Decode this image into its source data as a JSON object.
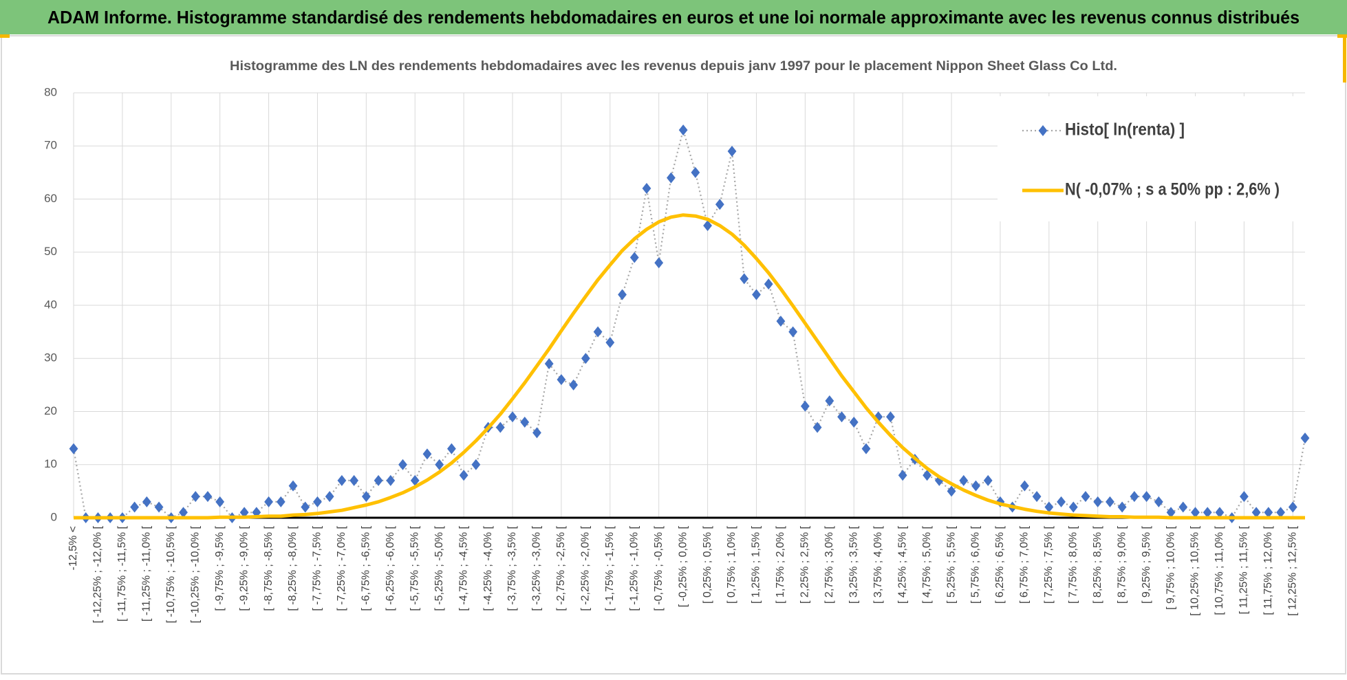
{
  "page_title": "ADAM Informe. Histogramme standardisé des rendements hebdomadaires en euros et une loi normale approximante avec les revenus connus distribués",
  "chart_data": {
    "type": "line",
    "title": "Histogramme  des LN des rendements  hebdomadaires avec les revenus depuis janv 1997 pour le placement Nippon Sheet Glass  Co Ltd.",
    "categories": [
      "-12,5% <",
      null,
      "[ -12,25% ; -12,0% [",
      null,
      "[ -11,75% ; -11,5% [",
      null,
      "[ -11,25% ; -11,0% [",
      null,
      "[ -10,75% ; -10,5% [",
      null,
      "[ -10,25% ; -10,0% [",
      null,
      "[ -9,75% ; -9,5% [",
      null,
      "[ -9,25% ; -9,0% [",
      null,
      "[ -8,75% ; -8,5% [",
      null,
      "[ -8,25% ; -8,0% [",
      null,
      "[ -7,75% ; -7,5% [",
      null,
      "[ -7,25% ; -7,0% [",
      null,
      "[ -6,75% ; -6,5% [",
      null,
      "[ -6,25% ; -6,0% [",
      null,
      "[ -5,75% ; -5,5% [",
      null,
      "[ -5,25% ; -5,0% [",
      null,
      "[ -4,75% ; -4,5% [",
      null,
      "[ -4,25% ; -4,0% [",
      null,
      "[ -3,75% ; -3,5% [",
      null,
      "[ -3,25% ; -3,0% [",
      null,
      "[ -2,75% ; -2,5% [",
      null,
      "[ -2,25% ; -2,0% [",
      null,
      "[ -1,75% ; -1,5% [",
      null,
      "[ -1,25% ; -1,0% [",
      null,
      "[ -0,75% ; -0,5% [",
      null,
      "[ -0,25% ; 0,0% [",
      null,
      "[ 0,25% ; 0,5% [",
      null,
      "[ 0,75% ; 1,0% [",
      null,
      "[ 1,25% ; 1,5% [",
      null,
      "[ 1,75% ; 2,0% [",
      null,
      "[ 2,25% ; 2,5% [",
      null,
      "[ 2,75% ; 3,0% [",
      null,
      "[ 3,25% ; 3,5% [",
      null,
      "[ 3,75% ; 4,0% [",
      null,
      "[ 4,25% ; 4,5% [",
      null,
      "[ 4,75% ; 5,0% [",
      null,
      "[ 5,25% ; 5,5% [",
      null,
      "[ 5,75% ; 6,0% [",
      null,
      "[ 6,25% ; 6,5% [",
      null,
      "[ 6,75% ; 7,0% [",
      null,
      "[ 7,25% ; 7,5% [",
      null,
      "[ 7,75% ; 8,0% [",
      null,
      "[ 8,25% ; 8,5% [",
      null,
      "[ 8,75% ; 9,0% [",
      null,
      "[ 9,25% ; 9,5% [",
      null,
      "[ 9,75% ; 10,0% [",
      null,
      "[ 10,25% ; 10,5% [",
      null,
      "[ 10,75% ; 11,0% [",
      null,
      "[ 11,25% ; 11,5% [",
      null,
      "[ 11,75% ; 12,0% [",
      null,
      "[ 12,25% ; 12,5% [",
      null
    ],
    "series": [
      {
        "name": "Histo[ ln(renta) ]",
        "color": "#4472c4",
        "line_color": "#a6a6a6",
        "marker": "diamond",
        "line_style": "dotted",
        "values": [
          13,
          0,
          0,
          0,
          0,
          2,
          3,
          2,
          0,
          1,
          4,
          4,
          3,
          0,
          1,
          1,
          3,
          3,
          6,
          2,
          3,
          4,
          7,
          7,
          4,
          7,
          7,
          10,
          7,
          12,
          10,
          13,
          8,
          10,
          17,
          17,
          19,
          18,
          16,
          29,
          26,
          25,
          30,
          35,
          33,
          42,
          49,
          62,
          48,
          64,
          73,
          65,
          55,
          59,
          69,
          45,
          42,
          44,
          37,
          35,
          21,
          17,
          22,
          19,
          18,
          13,
          19,
          19,
          8,
          11,
          8,
          7,
          5,
          7,
          6,
          7,
          3,
          2,
          6,
          4,
          2,
          3,
          2,
          4,
          3,
          3,
          2,
          4,
          4,
          3,
          1,
          2,
          1,
          1,
          1,
          0,
          4,
          1,
          1,
          1,
          2,
          15
        ]
      },
      {
        "name": "N( -0,07% ; s a 50% pp : 2,6% )",
        "color": "#ffc000",
        "marker": "none",
        "line_style": "solid",
        "values": [
          0,
          0,
          0,
          0,
          0,
          0,
          0,
          0,
          0,
          0,
          0,
          0,
          0.1,
          0.1,
          0.1,
          0.2,
          0.3,
          0.3,
          0.5,
          0.6,
          0.8,
          1.1,
          1.4,
          1.9,
          2.4,
          3.0,
          3.8,
          4.7,
          5.8,
          7.1,
          8.6,
          10.3,
          12.3,
          14.5,
          16.9,
          19.5,
          22.4,
          25.4,
          28.6,
          31.8,
          35.2,
          38.5,
          41.7,
          44.8,
          47.6,
          50.3,
          52.5,
          54.3,
          55.7,
          56.6,
          57.0,
          56.8,
          56.2,
          55.0,
          53.4,
          51.3,
          48.8,
          46.1,
          43.1,
          39.9,
          36.6,
          33.3,
          30.0,
          26.7,
          23.7,
          20.7,
          18.0,
          15.5,
          13.2,
          11.2,
          9.3,
          7.7,
          6.4,
          5.2,
          4.2,
          3.3,
          2.6,
          2.1,
          1.6,
          1.2,
          0.9,
          0.7,
          0.5,
          0.4,
          0.3,
          0.2,
          0.2,
          0.1,
          0.1,
          0.1,
          0,
          0,
          0,
          0,
          0,
          0,
          0,
          0,
          0,
          0,
          0,
          0
        ]
      }
    ],
    "ylim": [
      0,
      80
    ],
    "yticks": [
      0,
      10,
      20,
      30,
      40,
      50,
      60,
      70,
      80
    ],
    "grid": true,
    "legend": "top-right"
  }
}
